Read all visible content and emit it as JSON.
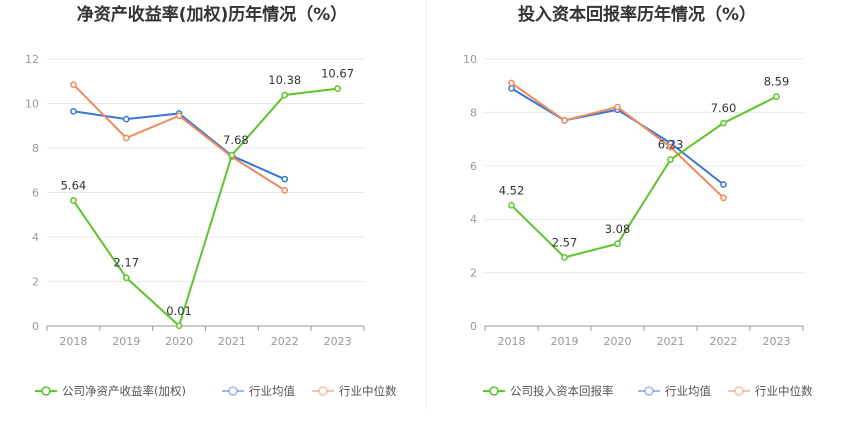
{
  "chart_data": [
    {
      "type": "line",
      "title": "净资产收益率(加权)历年情况（%）",
      "categories": [
        "2018",
        "2019",
        "2020",
        "2021",
        "2022",
        "2023"
      ],
      "ylim": [
        0,
        12
      ],
      "yticks": [
        "0",
        "2",
        "4",
        "6",
        "8",
        "10",
        "12"
      ],
      "grid": true,
      "legend_position": "bottom-left",
      "series": [
        {
          "name": "公司净资产收益率(加权)",
          "color": "#5dc42c",
          "values": [
            5.64,
            2.17,
            0.01,
            7.68,
            10.38,
            10.67
          ],
          "labels": [
            "5.64",
            "2.17",
            "0.01",
            "7.68",
            "10.38",
            "10.67"
          ]
        },
        {
          "name": "行业均值",
          "color": "#3a76d6",
          "values": [
            9.65,
            9.3,
            9.55,
            7.65,
            6.6,
            null
          ]
        },
        {
          "name": "行业中位数",
          "color": "#ef8a5c",
          "values": [
            10.85,
            8.45,
            9.45,
            7.6,
            6.1,
            null
          ]
        }
      ]
    },
    {
      "type": "line",
      "title": "投入资本回报率历年情况（%）",
      "categories": [
        "2018",
        "2019",
        "2020",
        "2021",
        "2022",
        "2023"
      ],
      "ylim": [
        0,
        10
      ],
      "yticks": [
        "0",
        "2",
        "4",
        "6",
        "8",
        "10"
      ],
      "grid": true,
      "legend_position": "bottom-left",
      "series": [
        {
          "name": "公司投入资本回报率",
          "color": "#5dc42c",
          "values": [
            4.52,
            2.57,
            3.08,
            6.23,
            7.6,
            8.59
          ],
          "labels": [
            "4.52",
            "2.57",
            "3.08",
            "6.23",
            "7.60",
            "8.59"
          ]
        },
        {
          "name": "行业均值",
          "color": "#3a76d6",
          "values": [
            8.9,
            7.7,
            8.1,
            6.85,
            5.3,
            null
          ]
        },
        {
          "name": "行业中位数",
          "color": "#ef8a5c",
          "values": [
            9.1,
            7.7,
            8.2,
            6.7,
            4.8,
            null
          ]
        }
      ]
    }
  ]
}
